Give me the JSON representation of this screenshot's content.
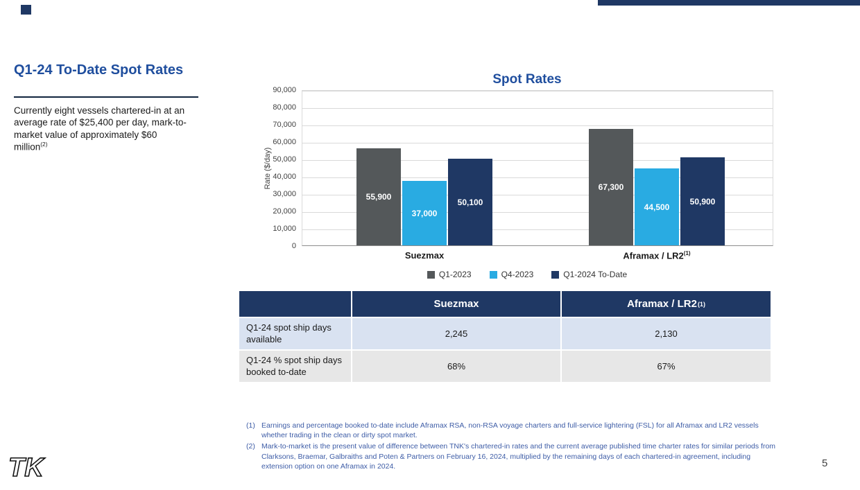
{
  "slide": {
    "title": "Q1-24 To-Date Spot Rates",
    "body_text": "Currently eight vessels chartered-in at an average rate of $25,400 per day, mark-to-market value of approximately $60 million",
    "body_superscript": "(2)",
    "page_number": "5",
    "logo_text": "TK"
  },
  "chart_data": {
    "type": "bar",
    "title": "Spot Rates",
    "ylabel": "Rate ($/day)",
    "ylim": [
      0,
      90000
    ],
    "ytick_step": 10000,
    "yticks": [
      "90,000",
      "80,000",
      "70,000",
      "60,000",
      "50,000",
      "40,000",
      "30,000",
      "20,000",
      "10,000",
      "0"
    ],
    "grid": true,
    "legend_position": "bottom",
    "categories": [
      "Suezmax",
      "Aframax / LR2"
    ],
    "category_superscripts": [
      "",
      "(1)"
    ],
    "series": [
      {
        "name": "Q1-2023",
        "color": "#54585A",
        "values": [
          55900,
          67300
        ],
        "labels": [
          "55,900",
          "67,300"
        ]
      },
      {
        "name": "Q4-2023",
        "color": "#29ABE2",
        "values": [
          37000,
          44500
        ],
        "labels": [
          "37,000",
          "44,500"
        ]
      },
      {
        "name": "Q1-2024 To-Date",
        "color": "#1F3864",
        "values": [
          50100,
          50900
        ],
        "labels": [
          "50,100",
          "50,900"
        ]
      }
    ]
  },
  "table": {
    "header": [
      "",
      "Suezmax",
      "Aframax / LR2"
    ],
    "header_superscripts": [
      "",
      "",
      "(1)"
    ],
    "rows": [
      {
        "label": "Q1-24 spot ship days available",
        "values": [
          "2,245",
          "2,130"
        ]
      },
      {
        "label": "Q1-24 % spot ship days booked to-date",
        "values": [
          "68%",
          "67%"
        ]
      }
    ]
  },
  "footnotes": [
    {
      "num": "(1)",
      "text": "Earnings and percentage booked to-date include Aframax RSA, non-RSA voyage charters and full-service lightering (FSL) for all Aframax and LR2 vessels whether trading in the clean or dirty spot market."
    },
    {
      "num": "(2)",
      "text": "Mark-to-market is the present value of difference between TNK's chartered-in rates and the current average published time charter rates for similar periods from Clarksons, Braemar, Galbraiths and Poten & Partners on February 16, 2024, multiplied by the remaining days of each chartered-in agreement, including extension option on one Aframax in 2024."
    }
  ],
  "colors": {
    "accent_navy": "#1F3864",
    "title_blue": "#1F4E9E",
    "series_gray": "#54585A",
    "series_light_blue": "#29ABE2",
    "series_navy": "#1F3864",
    "table_row1_bg": "#D9E2F1",
    "table_row2_bg": "#E7E7E7",
    "footnote_blue": "#3D5CA6"
  }
}
